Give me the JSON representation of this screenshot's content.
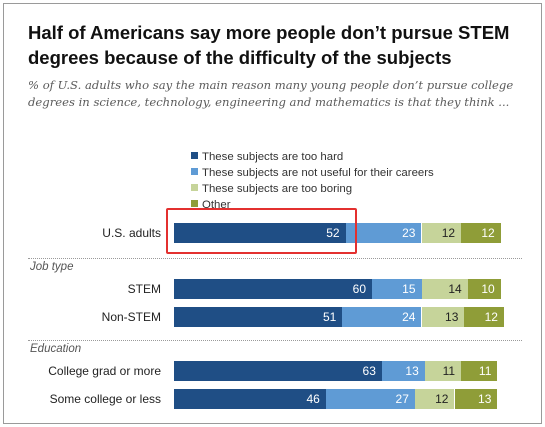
{
  "title": "Half of Americans say more people don’t pursue STEM degrees because of the difficulty of the subjects",
  "subtitle": "% of U.S. adults who say the main reason many young people don’t pursue college degrees in science, technology, engineering and mathematics is that they think ...",
  "colors": {
    "too_hard": "#1f4e85",
    "not_useful": "#5f9bd5",
    "too_boring": "#c6d49a",
    "other": "#8f9d38",
    "highlight": "#e3302f"
  },
  "chart_data": {
    "type": "bar",
    "orientation": "horizontal",
    "stacked": true,
    "title": "Half of Americans say more people don’t pursue STEM degrees because of the difficulty of the subjects",
    "subtitle": "% of U.S. adults who say the main reason many young people don’t pursue college degrees in science, technology, engineering and mathematics is that they think ...",
    "legend_position": "top",
    "series": [
      {
        "name": "These subjects are too hard",
        "color": "#1f4e85",
        "label_color": "#ffffff"
      },
      {
        "name": "These subjects are not useful for their careers",
        "color": "#5f9bd5",
        "label_color": "#ffffff"
      },
      {
        "name": "These subjects are too boring",
        "color": "#c6d49a",
        "label_color": "#222222"
      },
      {
        "name": "Other",
        "color": "#8f9d38",
        "label_color": "#ffffff"
      }
    ],
    "groups": [
      {
        "label": "",
        "rows": [
          {
            "label": "U.S. adults",
            "values": [
              52,
              23,
              12,
              12
            ],
            "highlighted": true
          }
        ]
      },
      {
        "label": "Job type",
        "rows": [
          {
            "label": "STEM",
            "values": [
              60,
              15,
              14,
              10
            ]
          },
          {
            "label": "Non-STEM",
            "values": [
              51,
              24,
              13,
              12
            ]
          }
        ]
      },
      {
        "label": "Education",
        "rows": [
          {
            "label": "College grad or more",
            "values": [
              63,
              13,
              11,
              11
            ]
          },
          {
            "label": "Some college or less",
            "values": [
              46,
              27,
              12,
              13
            ]
          }
        ]
      }
    ]
  }
}
